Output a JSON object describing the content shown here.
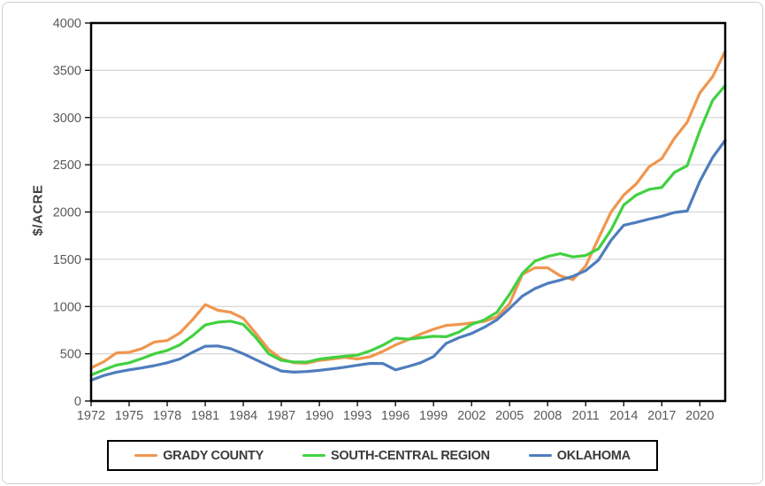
{
  "chart_data": {
    "type": "line",
    "title": "",
    "xlabel": "",
    "ylabel": "$/ACRE",
    "ylim": [
      0,
      4000
    ],
    "y_ticks": [
      0,
      500,
      1000,
      1500,
      2000,
      2500,
      3000,
      3500,
      4000
    ],
    "x": [
      1972,
      1973,
      1974,
      1975,
      1976,
      1977,
      1978,
      1979,
      1980,
      1981,
      1982,
      1983,
      1984,
      1985,
      1986,
      1987,
      1988,
      1989,
      1990,
      1991,
      1992,
      1993,
      1994,
      1995,
      1996,
      1997,
      1998,
      1999,
      2000,
      2001,
      2002,
      2003,
      2004,
      2005,
      2006,
      2007,
      2008,
      2009,
      2010,
      2011,
      2012,
      2013,
      2014,
      2015,
      2016,
      2017,
      2018,
      2019,
      2020,
      2021,
      2022
    ],
    "x_tick_labels": [
      "1972",
      "1975",
      "1978",
      "1981",
      "1984",
      "1987",
      "1990",
      "1993",
      "1996",
      "1999",
      "2002",
      "2005",
      "2008",
      "2011",
      "2014",
      "2017",
      "2020"
    ],
    "grid": "horizontal",
    "legend_position": "bottom",
    "colors": {
      "grid": "#D6D6D6",
      "axis": "#000000",
      "tick_label": "#595959",
      "axis_title": "#404040"
    },
    "series": [
      {
        "name": "GRADY COUNTY",
        "color": "#F0964E",
        "values": [
          350,
          415,
          510,
          515,
          555,
          625,
          640,
          720,
          860,
          1020,
          960,
          940,
          875,
          715,
          545,
          445,
          405,
          400,
          430,
          445,
          462,
          445,
          468,
          525,
          593,
          649,
          708,
          760,
          800,
          810,
          825,
          842,
          890,
          1030,
          1340,
          1410,
          1410,
          1325,
          1285,
          1430,
          1720,
          2000,
          2180,
          2300,
          2480,
          2565,
          2780,
          2950,
          3260,
          3430,
          3700
        ]
      },
      {
        "name": "SOUTH-CENTRAL REGION",
        "color": "#41D141",
        "values": [
          275,
          330,
          380,
          405,
          450,
          500,
          535,
          595,
          690,
          805,
          835,
          845,
          810,
          670,
          500,
          430,
          412,
          412,
          443,
          460,
          474,
          485,
          530,
          590,
          665,
          655,
          670,
          685,
          680,
          730,
          810,
          858,
          940,
          1130,
          1350,
          1480,
          1530,
          1560,
          1525,
          1540,
          1610,
          1810,
          2075,
          2180,
          2240,
          2260,
          2420,
          2490,
          2860,
          3180,
          3340
        ]
      },
      {
        "name": "OKLAHOMA",
        "color": "#4E7DBD",
        "values": [
          220,
          270,
          305,
          330,
          350,
          375,
          405,
          445,
          515,
          580,
          583,
          555,
          500,
          437,
          374,
          318,
          305,
          312,
          324,
          340,
          358,
          378,
          398,
          397,
          330,
          365,
          406,
          470,
          610,
          670,
          715,
          780,
          860,
          980,
          1110,
          1190,
          1245,
          1280,
          1320,
          1380,
          1490,
          1700,
          1860,
          1890,
          1925,
          1955,
          1995,
          2010,
          2325,
          2575,
          2760
        ]
      }
    ]
  }
}
